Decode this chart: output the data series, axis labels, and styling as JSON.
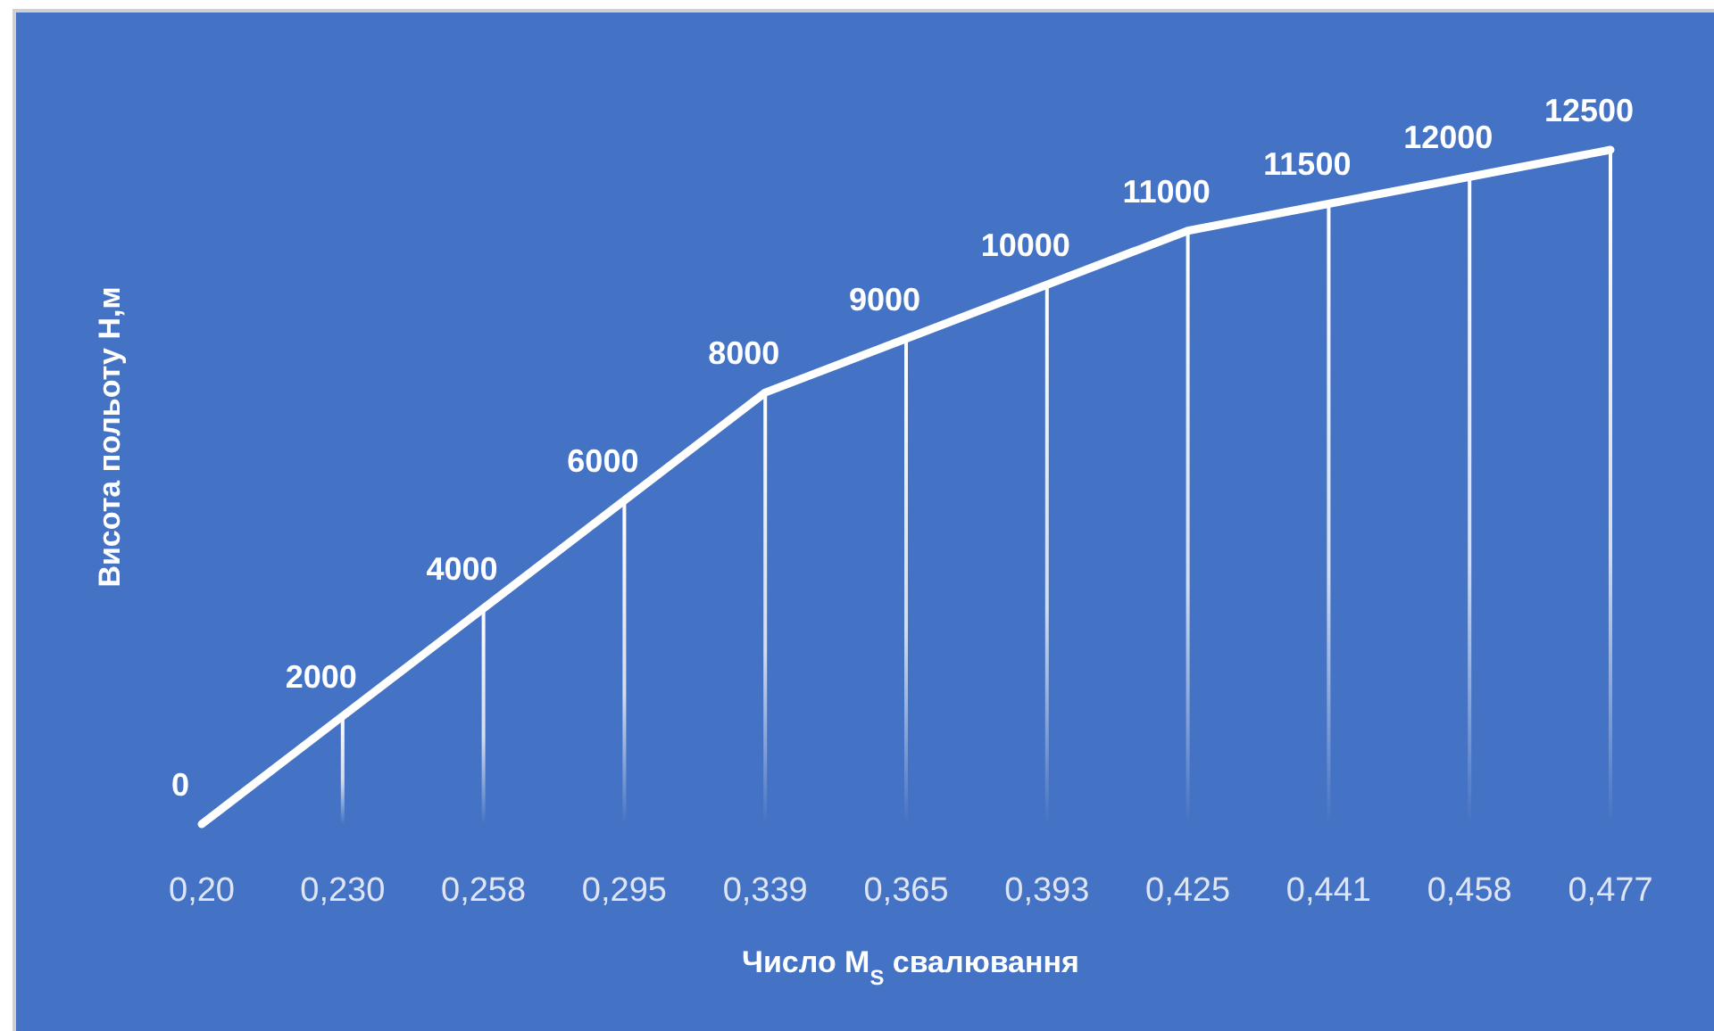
{
  "chart_data": {
    "type": "line",
    "xlabel": "Число M$_{S}$ свалювання",
    "ylabel": "Висота польоту Н,м",
    "categories": [
      "0,20",
      "0,230",
      "0,258",
      "0,295",
      "0,339",
      "0,365",
      "0,393",
      "0,425",
      "0,441",
      "0,458",
      "0,477"
    ],
    "series": [
      {
        "color": "#ffffff",
        "values": [
          0,
          2000,
          4000,
          6000,
          8000,
          9000,
          10000,
          11000,
          11500,
          12000,
          12500
        ],
        "value_labels": [
          "0",
          "2000",
          "4000",
          "6000",
          "8000",
          "9000",
          "10000",
          "11000",
          "11500",
          "12000",
          "12500"
        ]
      },
      {
        "type": "bar",
        "color": "#ffffff",
        "values": [
          0,
          2000,
          4000,
          6000,
          8000,
          9000,
          10000,
          11000,
          11500,
          12000,
          12500
        ],
        "value_labels": [
          null,
          null,
          null,
          null,
          null,
          null,
          null,
          null,
          null,
          null,
          null
        ]
      }
    ],
    "marker": "none"
  }
}
